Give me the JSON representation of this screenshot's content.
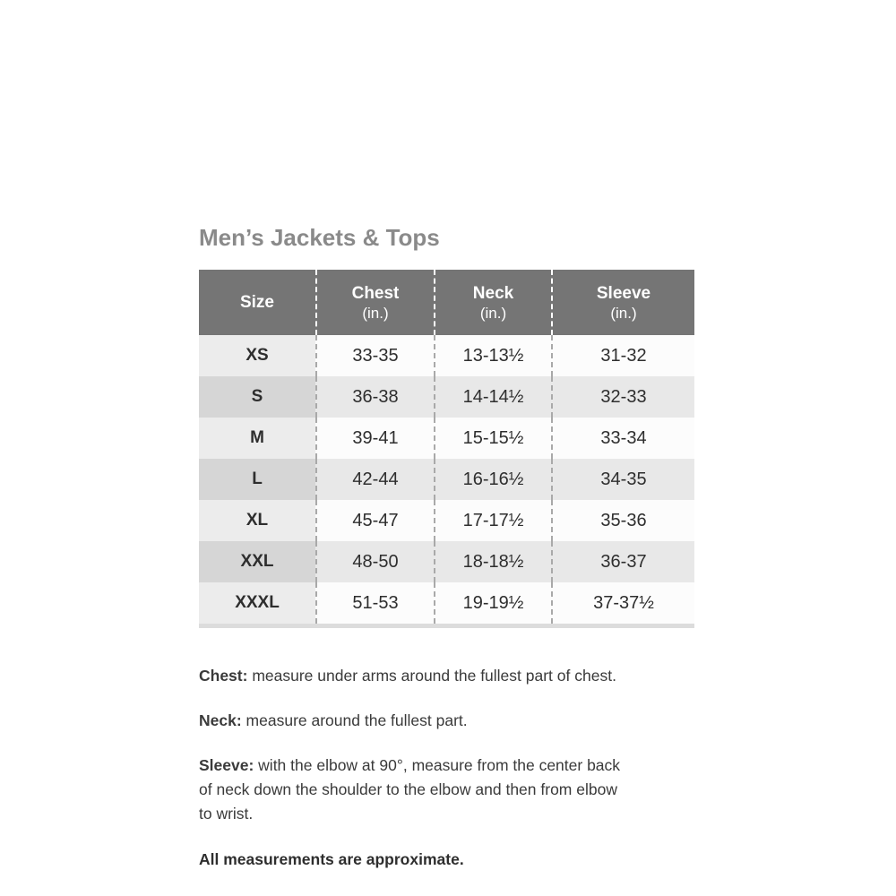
{
  "title": "Men’s Jackets & Tops",
  "table": {
    "headers": [
      {
        "label": "Size",
        "unit": ""
      },
      {
        "label": "Chest",
        "unit": "(in.)"
      },
      {
        "label": "Neck",
        "unit": "(in.)"
      },
      {
        "label": "Sleeve",
        "unit": "(in.)"
      }
    ],
    "rows": [
      {
        "size": "XS",
        "chest": "33-35",
        "neck": "13-13½",
        "sleeve": "31-32"
      },
      {
        "size": "S",
        "chest": "36-38",
        "neck": "14-14½",
        "sleeve": "32-33"
      },
      {
        "size": "M",
        "chest": "39-41",
        "neck": "15-15½",
        "sleeve": "33-34"
      },
      {
        "size": "L",
        "chest": "42-44",
        "neck": "16-16½",
        "sleeve": "34-35"
      },
      {
        "size": "XL",
        "chest": "45-47",
        "neck": "17-17½",
        "sleeve": "35-36"
      },
      {
        "size": "XXL",
        "chest": "48-50",
        "neck": "18-18½",
        "sleeve": "36-37"
      },
      {
        "size": "XXXL",
        "chest": "51-53",
        "neck": "19-19½",
        "sleeve": "37-37½"
      }
    ]
  },
  "notes": [
    {
      "label": "Chest:",
      "text": "measure under arms around the fullest part of chest."
    },
    {
      "label": "Neck:",
      "text": "measure around the fullest part."
    },
    {
      "label": "Sleeve:",
      "text": "with the elbow at 90°, measure from the center back\nof neck down the shoulder to the elbow and then from elbow\nto wrist."
    }
  ],
  "footnote": "All measurements are approximate.",
  "colors": {
    "header_bg": "#757575",
    "header_text": "#ffffff",
    "row_odd_size_bg": "#ececec",
    "row_odd_data_bg": "#fcfcfc",
    "row_even_size_bg": "#d6d6d6",
    "row_even_data_bg": "#e8e8e8",
    "divider_header": "#ffffff",
    "divider_body": "#a9a9a9",
    "bottom_strip": "#dcdcdc",
    "title_text": "#8a8a8a",
    "body_text": "#3a3a3a"
  }
}
